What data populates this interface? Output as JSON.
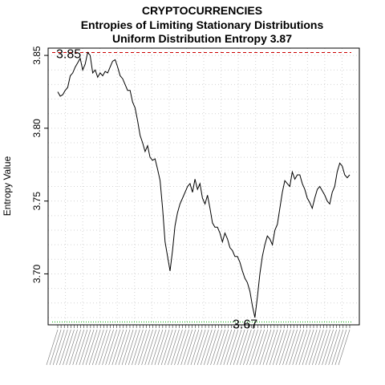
{
  "chart_data": {
    "type": "line",
    "title_lines": [
      "CRYPTOCURRENCIES",
      "Entropies of Limiting Stationary Distributions",
      "Uniform Distribution Entropy  3.87"
    ],
    "xlabel": "",
    "ylabel": "Entropy Value",
    "ylim": [
      3.665,
      3.855
    ],
    "yticks": [
      3.7,
      3.75,
      3.8,
      3.85
    ],
    "ytick_labels": [
      "3.70",
      "3.75",
      "3.80",
      "3.85"
    ],
    "grid": true,
    "reference_lines": [
      {
        "y": 3.852,
        "color": "#cc0000",
        "style": "dashed",
        "label": "3.85"
      },
      {
        "y": 3.667,
        "color": "#00aa00",
        "style": "dotted",
        "label": "3.67"
      }
    ],
    "series": [
      {
        "color": "#000000",
        "values": [
          3.825,
          3.822,
          3.823,
          3.826,
          3.828,
          3.836,
          3.838,
          3.842,
          3.845,
          3.848,
          3.84,
          3.844,
          3.852,
          3.85,
          3.838,
          3.84,
          3.835,
          3.838,
          3.836,
          3.839,
          3.838,
          3.842,
          3.846,
          3.847,
          3.842,
          3.836,
          3.834,
          3.83,
          3.826,
          3.826,
          3.818,
          3.814,
          3.805,
          3.795,
          3.79,
          3.784,
          3.788,
          3.78,
          3.778,
          3.779,
          3.772,
          3.764,
          3.745,
          3.722,
          3.712,
          3.702,
          3.716,
          3.733,
          3.742,
          3.748,
          3.752,
          3.756,
          3.76,
          3.762,
          3.756,
          3.765,
          3.758,
          3.762,
          3.752,
          3.748,
          3.754,
          3.745,
          3.735,
          3.732,
          3.732,
          3.728,
          3.722,
          3.728,
          3.724,
          3.718,
          3.716,
          3.712,
          3.712,
          3.708,
          3.702,
          3.697,
          3.694,
          3.688,
          3.678,
          3.67,
          3.684,
          3.7,
          3.712,
          3.72,
          3.726,
          3.724,
          3.72,
          3.73,
          3.734,
          3.745,
          3.756,
          3.764,
          3.762,
          3.76,
          3.77,
          3.765,
          3.768,
          3.768,
          3.762,
          3.758,
          3.752,
          3.749,
          3.745,
          3.752,
          3.758,
          3.76,
          3.757,
          3.754,
          3.75,
          3.748,
          3.756,
          3.76,
          3.77,
          3.776,
          3.774,
          3.768,
          3.766,
          3.768
        ]
      }
    ]
  }
}
